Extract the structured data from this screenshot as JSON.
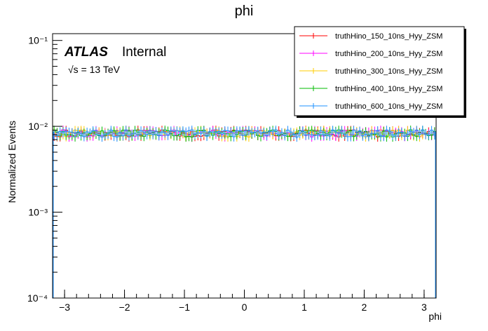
{
  "chart_data": {
    "type": "line",
    "style": "histogram-with-errorbars",
    "title": "phi",
    "xlabel": "phi",
    "ylabel": "Normalized Events",
    "xlim": [
      -3.2,
      3.2
    ],
    "ylim": [
      0.0001,
      0.12
    ],
    "yscale": "log",
    "x_ticks": [
      -3,
      -2,
      -1,
      0,
      1,
      2,
      3
    ],
    "x_tick_labels": [
      "−3",
      "−2",
      "−1",
      "0",
      "1",
      "2",
      "3"
    ],
    "y_ticks": [
      0.0001,
      0.001,
      0.01,
      0.1
    ],
    "y_tick_labels": [
      "10⁻⁴",
      "10⁻³",
      "10⁻²",
      "10⁻¹"
    ],
    "grid": false,
    "legend_position": "top-right",
    "nbins": 128,
    "annotation": {
      "atlas": "ATLAS",
      "status": "Internal",
      "energy": "√s = 13 TeV"
    },
    "series": [
      {
        "name": "truthHino_150_10ns_Hyy_ZSM",
        "color": "#ff0000",
        "level": 0.0083,
        "rel_error": 0.12
      },
      {
        "name": "truthHino_200_10ns_Hyy_ZSM",
        "color": "#ff00ff",
        "level": 0.0083,
        "rel_error": 0.12
      },
      {
        "name": "truthHino_300_10ns_Hyy_ZSM",
        "color": "#ffcc00",
        "level": 0.0083,
        "rel_error": 0.12
      },
      {
        "name": "truthHino_400_10ns_Hyy_ZSM",
        "color": "#00bb00",
        "level": 0.0083,
        "rel_error": 0.12
      },
      {
        "name": "truthHino_600_10ns_Hyy_ZSM",
        "color": "#1e90ff",
        "level": 0.0083,
        "rel_error": 0.12
      }
    ]
  }
}
